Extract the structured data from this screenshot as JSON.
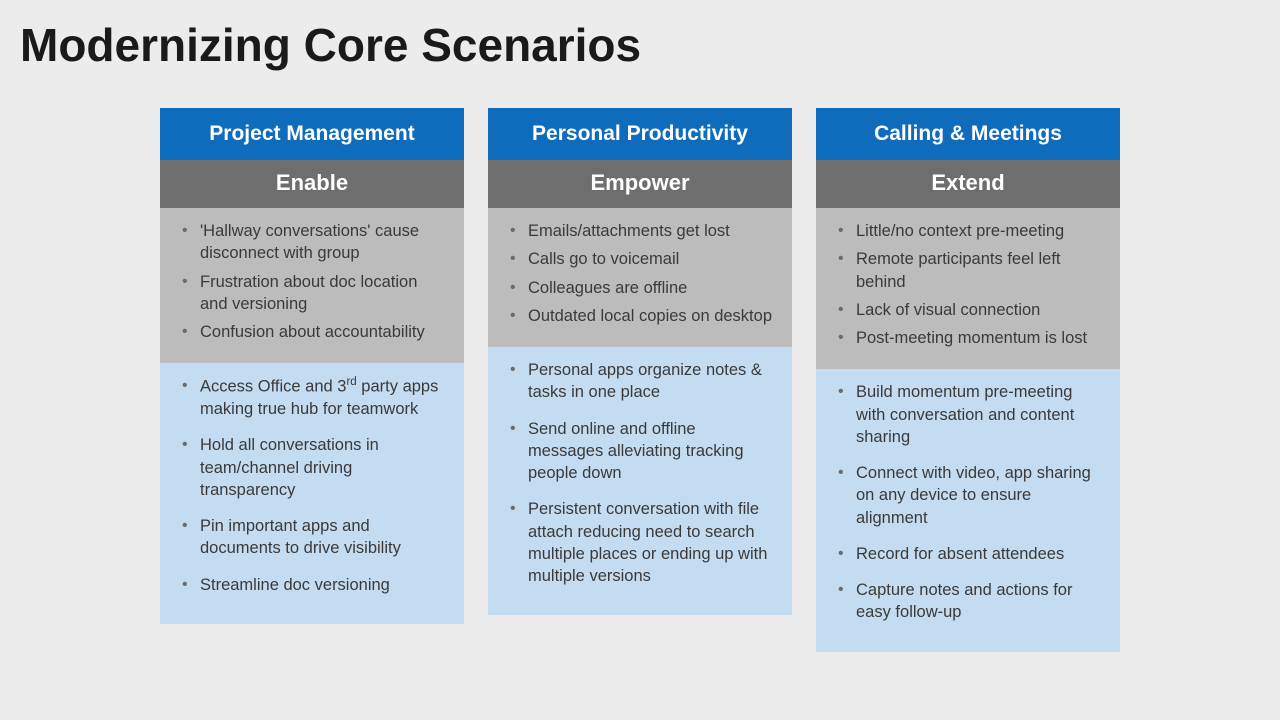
{
  "title": "Modernizing Core Scenarios",
  "colors": {
    "header_blue": "#0f6cbd",
    "header_gray": "#6e6e6e",
    "panel_gray": "#bcbcbc",
    "panel_blue": "#c3dcf2",
    "slide_bg": "#ececec"
  },
  "fonts": {
    "family": "Segoe UI",
    "title_size_pt": 34,
    "header_size_pt": 16,
    "body_size_pt": 12.5
  },
  "columns": [
    {
      "header": "Project Management",
      "subheader": "Enable",
      "problems": [
        "'Hallway conversations' cause disconnect with group",
        "Frustration about doc location and versioning",
        "Confusion about accountability"
      ],
      "solutions": [
        "Access Office and 3rd party apps making true hub for teamwork",
        "Hold all conversations in team/channel driving transparency",
        "Pin important apps and documents to drive visibility",
        "Streamline doc versioning"
      ]
    },
    {
      "header": "Personal Productivity",
      "subheader": "Empower",
      "problems": [
        "Emails/attachments get lost",
        "Calls go to voicemail",
        "Colleagues are offline",
        "Outdated local copies on desktop"
      ],
      "solutions": [
        "Personal apps organize notes & tasks in one place",
        "Send online and offline messages alleviating tracking people down",
        "Persistent conversation with file attach reducing need to search multiple places or ending up with multiple versions"
      ]
    },
    {
      "header": "Calling & Meetings",
      "subheader": "Extend",
      "problems": [
        "Little/no context pre-meeting",
        "Remote participants feel left behind",
        "Lack of visual connection",
        "Post-meeting momentum is lost"
      ],
      "solutions": [
        "Build momentum pre-meeting with conversation and content sharing",
        "Connect with video, app sharing on any device to ensure alignment",
        "Record for absent attendees",
        "Capture notes and actions for easy follow-up"
      ]
    }
  ]
}
